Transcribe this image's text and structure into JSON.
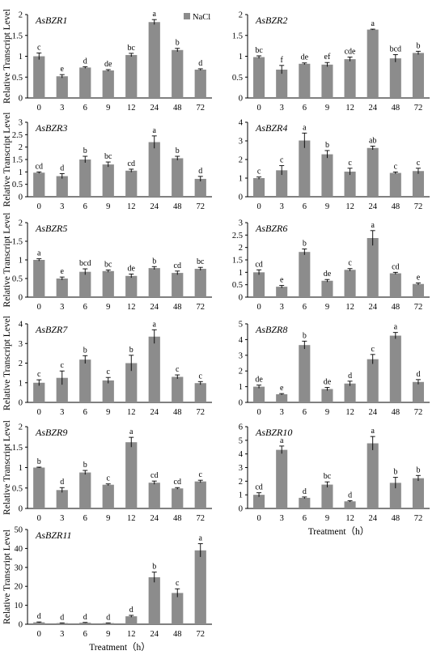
{
  "figure": {
    "ylabel": "Relative Transcript Level",
    "xlabel": "Treatment（h）",
    "legend": "NaCl",
    "colors": {
      "bar": "#8c8c8c",
      "axis": "#000000"
    }
  },
  "chart_data": [
    {
      "type": "bar",
      "title": "AsBZR1",
      "categories": [
        "0",
        "3",
        "6",
        "9",
        "12",
        "24",
        "48",
        "72"
      ],
      "series": [
        {
          "name": "NaCl",
          "values": [
            1.0,
            0.52,
            0.73,
            0.66,
            1.03,
            1.82,
            1.15,
            0.68
          ]
        }
      ],
      "errors": [
        0.08,
        0.04,
        0.02,
        0.02,
        0.04,
        0.06,
        0.04,
        0.02
      ],
      "letters": [
        "c",
        "e",
        "d",
        "de",
        "bc",
        "a",
        "b",
        "d"
      ],
      "ylim": [
        0,
        2
      ],
      "yticks": [
        "0",
        "0.5",
        "1",
        "1.5",
        "2"
      ],
      "ylabel": "Relative Transcript Level",
      "xlabel": ""
    },
    {
      "type": "bar",
      "title": "AsBZR2",
      "categories": [
        "0",
        "3",
        "6",
        "9",
        "12",
        "24",
        "48",
        "72"
      ],
      "series": [
        {
          "values": [
            0.98,
            0.68,
            0.82,
            0.8,
            0.93,
            1.64,
            0.95,
            1.08
          ]
        }
      ],
      "errors": [
        0.03,
        0.1,
        0.02,
        0.05,
        0.05,
        0.01,
        0.09,
        0.04
      ],
      "letters": [
        "bc",
        "f",
        "de",
        "ef",
        "cde",
        "a",
        "bcd",
        "b"
      ],
      "ylim": [
        0,
        2
      ],
      "yticks": [
        "0",
        "0.5",
        "1",
        "1.5",
        "2"
      ],
      "ylabel": "",
      "xlabel": ""
    },
    {
      "type": "bar",
      "title": "AsBZR3",
      "categories": [
        "0",
        "3",
        "6",
        "9",
        "12",
        "24",
        "48",
        "72"
      ],
      "series": [
        {
          "values": [
            0.97,
            0.83,
            1.5,
            1.3,
            1.05,
            2.2,
            1.55,
            0.72
          ]
        }
      ],
      "errors": [
        0.03,
        0.1,
        0.13,
        0.1,
        0.06,
        0.25,
        0.08,
        0.1
      ],
      "letters": [
        "cd",
        "d",
        "b",
        "bc",
        "cd",
        "a",
        "b",
        "d"
      ],
      "ylim": [
        0,
        3
      ],
      "yticks": [
        "0",
        "0.5",
        "1",
        "1.5",
        "2",
        "2.5",
        "3"
      ],
      "ylabel": "Relative Transcript Level",
      "xlabel": ""
    },
    {
      "type": "bar",
      "title": "AsBZR4",
      "categories": [
        "0",
        "3",
        "6",
        "9",
        "12",
        "24",
        "48",
        "72"
      ],
      "series": [
        {
          "values": [
            1.0,
            1.42,
            3.02,
            2.28,
            1.35,
            2.62,
            1.28,
            1.38
          ]
        }
      ],
      "errors": [
        0.06,
        0.25,
        0.4,
        0.2,
        0.18,
        0.1,
        0.05,
        0.15
      ],
      "letters": [
        "c",
        "c",
        "a",
        "b",
        "c",
        "ab",
        "c",
        "c"
      ],
      "ylim": [
        0,
        4
      ],
      "yticks": [
        "0",
        "1",
        "2",
        "3",
        "4"
      ],
      "ylabel": "",
      "xlabel": ""
    },
    {
      "type": "bar",
      "title": "AsBZR5",
      "categories": [
        "0",
        "3",
        "6",
        "9",
        "12",
        "24",
        "48",
        "72"
      ],
      "series": [
        {
          "values": [
            1.0,
            0.5,
            0.68,
            0.7,
            0.57,
            0.78,
            0.65,
            0.76
          ]
        }
      ],
      "errors": [
        0.03,
        0.04,
        0.08,
        0.03,
        0.05,
        0.04,
        0.05,
        0.04
      ],
      "letters": [
        "a",
        "e",
        "bcd",
        "bc",
        "de",
        "b",
        "cd",
        "bc"
      ],
      "ylim": [
        0,
        2
      ],
      "yticks": [
        "0",
        "0.5",
        "1",
        "1.5",
        "2"
      ],
      "ylabel": "Relative Transcript Level",
      "xlabel": ""
    },
    {
      "type": "bar",
      "title": "AsBZR6",
      "categories": [
        "0",
        "3",
        "6",
        "9",
        "12",
        "24",
        "48",
        "72"
      ],
      "series": [
        {
          "values": [
            1.0,
            0.42,
            1.82,
            0.66,
            1.1,
            2.38,
            0.96,
            0.53
          ]
        }
      ],
      "errors": [
        0.1,
        0.05,
        0.12,
        0.05,
        0.05,
        0.3,
        0.04,
        0.04
      ],
      "letters": [
        "cd",
        "e",
        "b",
        "de",
        "c",
        "a",
        "cd",
        "e"
      ],
      "ylim": [
        0,
        3
      ],
      "yticks": [
        "0",
        "0.5",
        "1",
        "1.5",
        "2",
        "2.5",
        "3"
      ],
      "ylabel": "",
      "xlabel": ""
    },
    {
      "type": "bar",
      "title": "AsBZR7",
      "categories": [
        "0",
        "3",
        "6",
        "9",
        "12",
        "24",
        "48",
        "72"
      ],
      "series": [
        {
          "values": [
            1.0,
            1.25,
            2.18,
            1.12,
            2.0,
            3.35,
            1.3,
            0.98
          ]
        }
      ],
      "errors": [
        0.15,
        0.35,
        0.2,
        0.15,
        0.4,
        0.35,
        0.1,
        0.08
      ],
      "letters": [
        "c",
        "c",
        "b",
        "c",
        "b",
        "a",
        "c",
        "c"
      ],
      "ylim": [
        0,
        4
      ],
      "yticks": [
        "0",
        "1",
        "2",
        "3",
        "4"
      ],
      "ylabel": "Relative Transcript Level",
      "xlabel": ""
    },
    {
      "type": "bar",
      "title": "AsBZR8",
      "categories": [
        "0",
        "3",
        "6",
        "9",
        "12",
        "24",
        "48",
        "72"
      ],
      "series": [
        {
          "values": [
            1.0,
            0.52,
            3.65,
            0.85,
            1.2,
            2.75,
            4.25,
            1.3
          ]
        }
      ],
      "errors": [
        0.1,
        0.04,
        0.25,
        0.1,
        0.15,
        0.3,
        0.2,
        0.15
      ],
      "letters": [
        "de",
        "e",
        "b",
        "de",
        "d",
        "c",
        "a",
        "d"
      ],
      "ylim": [
        0,
        5
      ],
      "yticks": [
        "0",
        "1",
        "2",
        "3",
        "4",
        "5"
      ],
      "ylabel": "",
      "xlabel": ""
    },
    {
      "type": "bar",
      "title": "AsBZR9",
      "categories": [
        "0",
        "3",
        "6",
        "9",
        "12",
        "24",
        "48",
        "72"
      ],
      "series": [
        {
          "values": [
            1.0,
            0.45,
            0.88,
            0.58,
            1.62,
            0.63,
            0.49,
            0.66
          ]
        }
      ],
      "errors": [
        0.01,
        0.06,
        0.05,
        0.02,
        0.12,
        0.04,
        0.02,
        0.03
      ],
      "letters": [
        "b",
        "d",
        "b",
        "c",
        "a",
        "cd",
        "cd",
        "c"
      ],
      "ylim": [
        0,
        2
      ],
      "yticks": [
        "0",
        "0.5",
        "1",
        "1.5",
        "2"
      ],
      "ylabel": "Relative Transcript Level",
      "xlabel": ""
    },
    {
      "type": "bar",
      "title": "AsBZR10",
      "categories": [
        "0",
        "3",
        "6",
        "9",
        "12",
        "24",
        "48",
        "72"
      ],
      "series": [
        {
          "values": [
            1.0,
            4.3,
            0.78,
            1.75,
            0.52,
            4.78,
            1.88,
            2.22
          ]
        }
      ],
      "errors": [
        0.15,
        0.28,
        0.06,
        0.2,
        0.05,
        0.5,
        0.4,
        0.2
      ],
      "letters": [
        "cd",
        "a",
        "d",
        "bc",
        "d",
        "a",
        "b",
        "b"
      ],
      "ylim": [
        0,
        6
      ],
      "yticks": [
        "0",
        "1",
        "2",
        "3",
        "4",
        "5",
        "6"
      ],
      "ylabel": "",
      "xlabel": "Treatment（h）"
    },
    {
      "type": "bar",
      "title": "AsBZR11",
      "categories": [
        "0",
        "3",
        "6",
        "9",
        "12",
        "24",
        "48",
        "72"
      ],
      "series": [
        {
          "values": [
            1.0,
            0.6,
            0.8,
            0.6,
            4.2,
            24.8,
            16.5,
            39.0
          ]
        }
      ],
      "errors": [
        0.2,
        0.1,
        0.15,
        0.1,
        0.5,
        2.7,
        2.2,
        3.5
      ],
      "letters": [
        "d",
        "d",
        "d",
        "d",
        "d",
        "b",
        "c",
        "a"
      ],
      "ylim": [
        0,
        50
      ],
      "yticks": [
        "0",
        "10",
        "20",
        "30",
        "40",
        "50"
      ],
      "ylabel": "Relative Transcript Level",
      "xlabel": "Treatment（h）"
    }
  ]
}
